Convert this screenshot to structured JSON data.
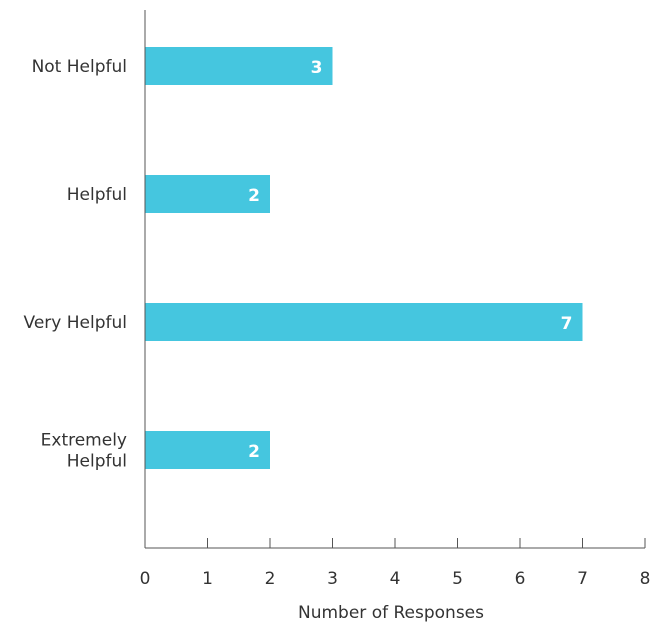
{
  "chart_data": {
    "type": "bar",
    "orientation": "horizontal",
    "title": "",
    "xlabel": "Number of Responses",
    "ylabel": "",
    "categories": [
      [
        "Not Helpful"
      ],
      [
        "Helpful"
      ],
      [
        "Very Helpful"
      ],
      [
        "Extremely",
        "Helpful"
      ]
    ],
    "values": [
      3,
      2,
      7,
      2
    ],
    "xlim": [
      0,
      8
    ],
    "xticks": [
      "0",
      "1",
      "2",
      "3",
      "4",
      "5",
      "6",
      "7",
      "8"
    ],
    "grid": false,
    "legend": "none",
    "data_labels": true,
    "colors": {
      "bar": "#45c6df",
      "axis": "#555555",
      "label": "#333333",
      "data_label": "#ffffff"
    }
  }
}
